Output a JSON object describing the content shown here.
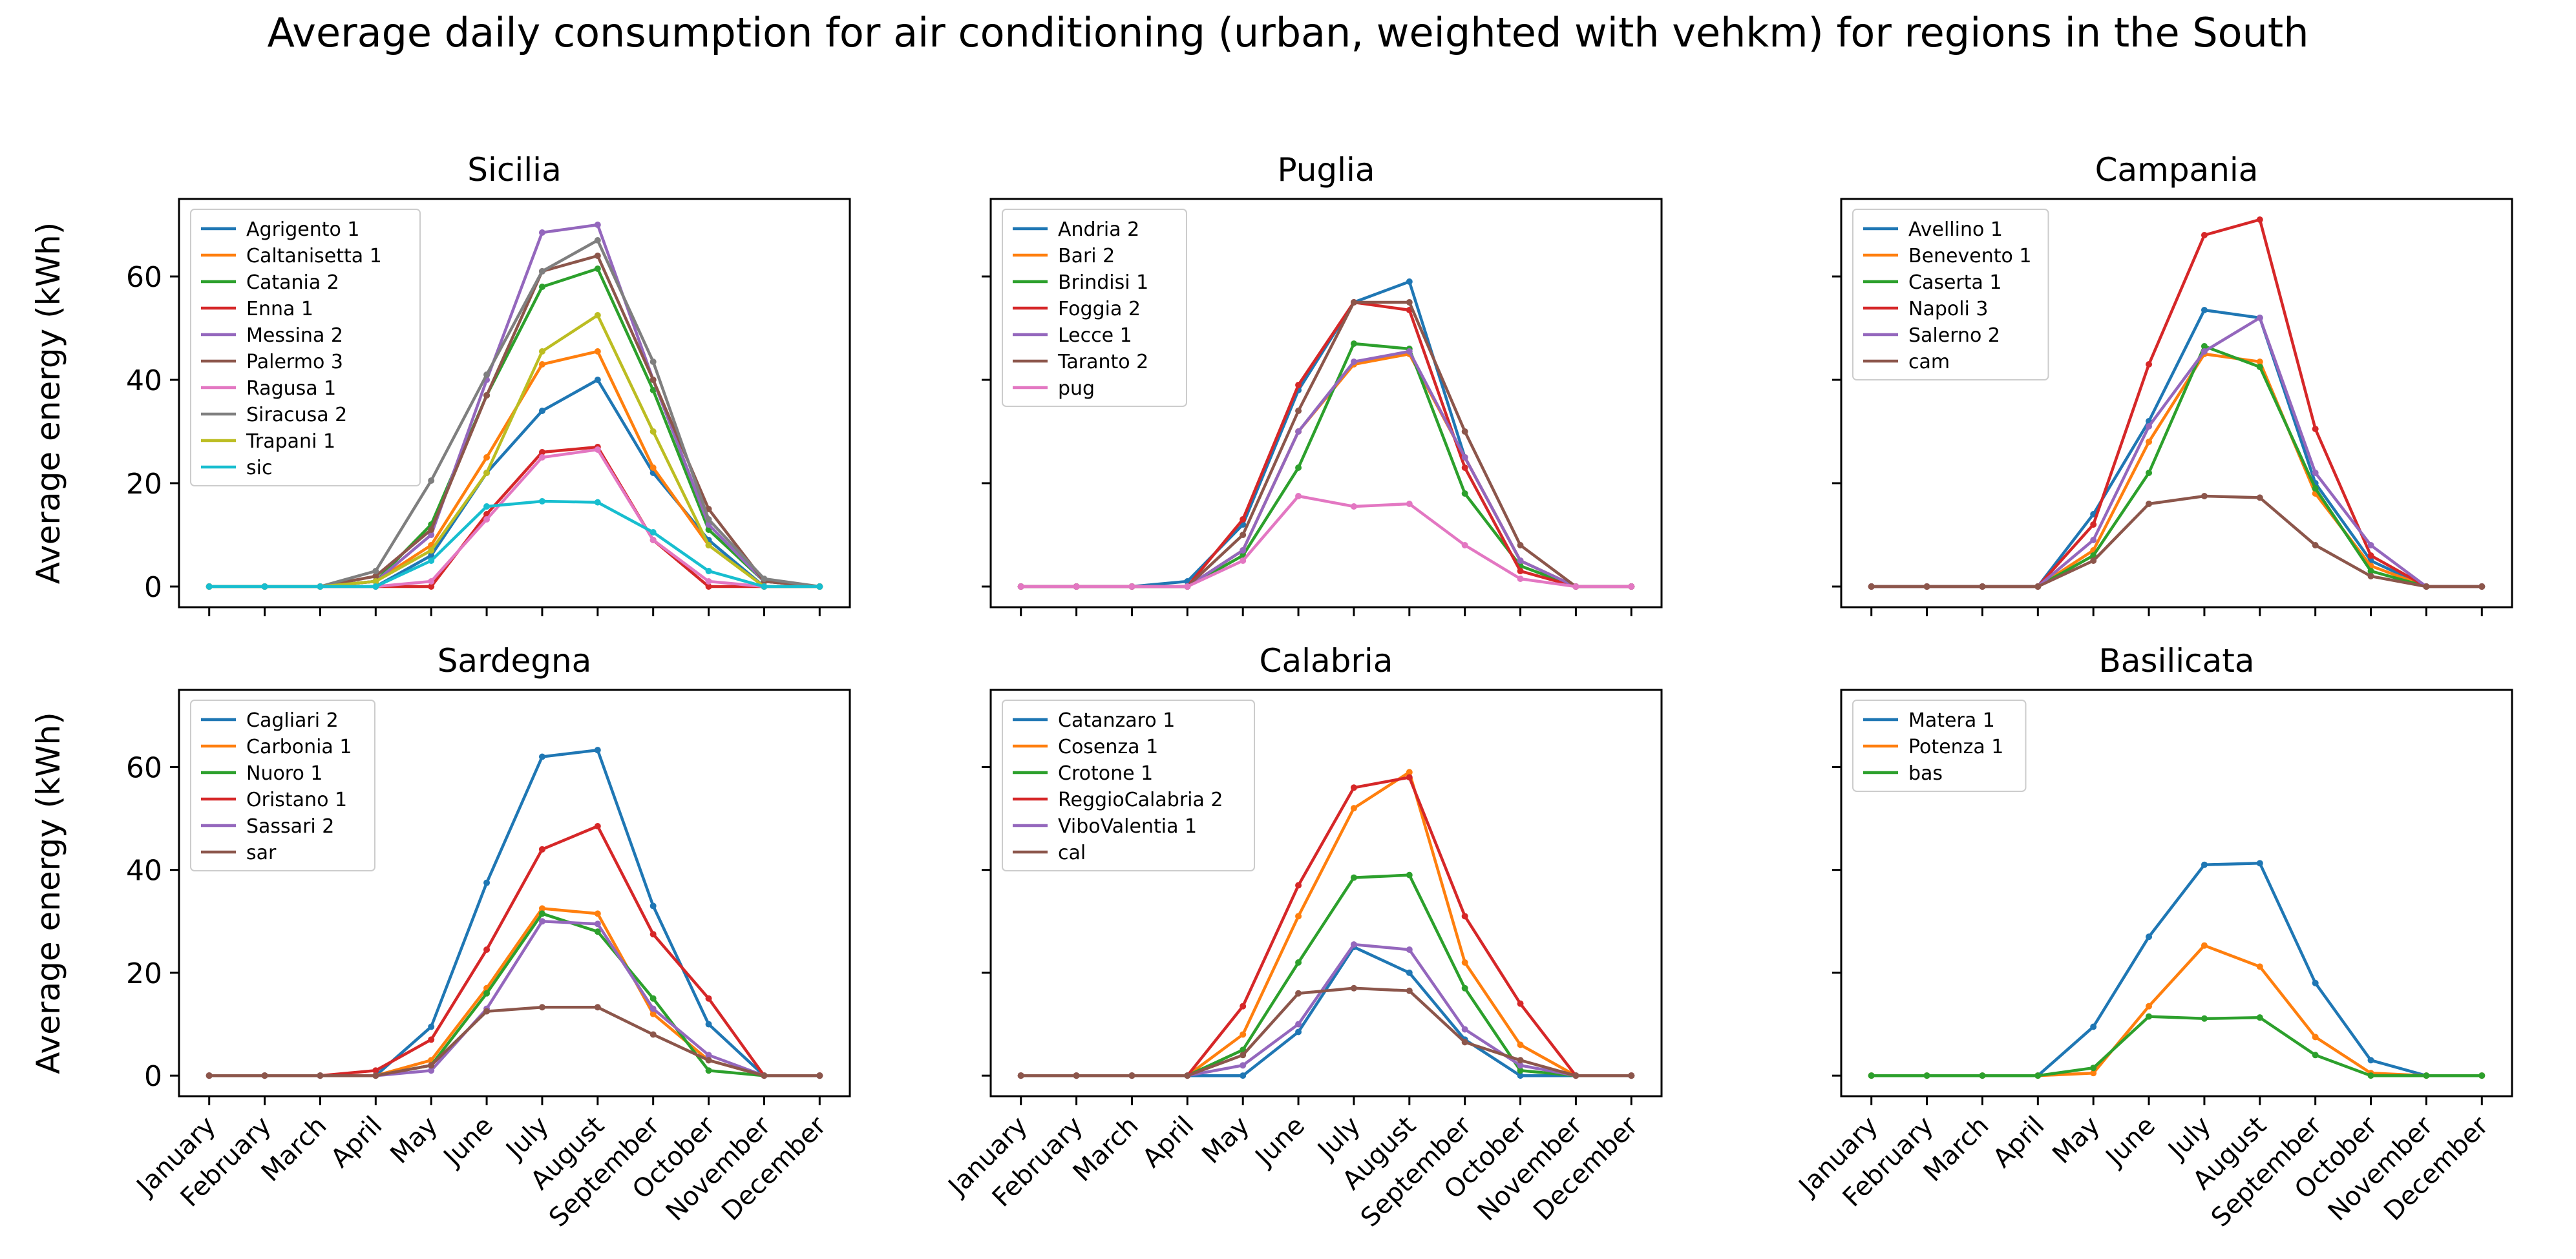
{
  "title": "Average daily consumption for air conditioning (urban, weighted with vehkm) for regions in the South",
  "months": [
    "January",
    "February",
    "March",
    "April",
    "May",
    "June",
    "July",
    "August",
    "September",
    "October",
    "November",
    "December"
  ],
  "ylabel": "Average energy (kWh)",
  "yticks": [
    0,
    20,
    40,
    60
  ],
  "colors": [
    "#1f77b4",
    "#ff7f0e",
    "#2ca02c",
    "#d62728",
    "#9467bd",
    "#8c564b",
    "#e377c2",
    "#7f7f7f",
    "#bcbd22",
    "#17becf"
  ],
  "chart_data": [
    {
      "type": "line",
      "title": "Sicilia",
      "ylim": [
        -4,
        75
      ],
      "legend_position": "top-left",
      "series": [
        {
          "name": "Agrigento 1",
          "color": "#1f77b4",
          "values": [
            0,
            0,
            0,
            0,
            6,
            22,
            34,
            40,
            22,
            9,
            0,
            0
          ]
        },
        {
          "name": "Caltanisetta 1",
          "color": "#ff7f0e",
          "values": [
            0,
            0,
            0,
            1,
            8,
            25,
            43,
            45.5,
            23,
            8,
            0,
            0
          ]
        },
        {
          "name": "Catania 2",
          "color": "#2ca02c",
          "values": [
            0,
            0,
            0,
            1,
            12,
            37,
            58,
            61.5,
            38,
            11,
            1,
            0
          ]
        },
        {
          "name": "Enna 1",
          "color": "#d62728",
          "values": [
            0,
            0,
            0,
            0,
            0,
            14,
            26,
            27,
            9,
            0,
            0,
            0
          ]
        },
        {
          "name": "Messina 2",
          "color": "#9467bd",
          "values": [
            0,
            0,
            0,
            1,
            10,
            40,
            68.5,
            70,
            40,
            12,
            1,
            0
          ]
        },
        {
          "name": "Palermo 3",
          "color": "#8c564b",
          "values": [
            0,
            0,
            0,
            2,
            11,
            37,
            61,
            64,
            40,
            15,
            1,
            0
          ]
        },
        {
          "name": "Ragusa 1",
          "color": "#e377c2",
          "values": [
            0,
            0,
            0,
            0,
            1,
            13,
            25,
            26.5,
            9,
            1,
            0,
            0
          ]
        },
        {
          "name": "Siracusa 2",
          "color": "#7f7f7f",
          "values": [
            0,
            0,
            0,
            3,
            20.5,
            41,
            61,
            67,
            43.5,
            13,
            1.5,
            0
          ]
        },
        {
          "name": "Trapani 1",
          "color": "#bcbd22",
          "values": [
            0,
            0,
            0,
            1,
            7,
            22,
            45.5,
            52.5,
            30,
            8,
            0,
            0
          ]
        },
        {
          "name": "sic",
          "color": "#17becf",
          "values": [
            0,
            0,
            0,
            0,
            5,
            15.5,
            16.5,
            16.3,
            10.5,
            3,
            0,
            0
          ]
        }
      ]
    },
    {
      "type": "line",
      "title": "Puglia",
      "ylim": [
        -4,
        75
      ],
      "legend_position": "top-left",
      "series": [
        {
          "name": "Andria 2",
          "color": "#1f77b4",
          "values": [
            0,
            0,
            0,
            1,
            12,
            38,
            55,
            59,
            25,
            5,
            0,
            0
          ]
        },
        {
          "name": "Bari 2",
          "color": "#ff7f0e",
          "values": [
            0,
            0,
            0,
            0,
            7,
            30,
            43,
            45,
            25,
            5,
            0,
            0
          ]
        },
        {
          "name": "Brindisi 1",
          "color": "#2ca02c",
          "values": [
            0,
            0,
            0,
            0,
            6,
            23,
            47,
            46,
            18,
            4,
            0,
            0
          ]
        },
        {
          "name": "Foggia 2",
          "color": "#d62728",
          "values": [
            0,
            0,
            0,
            0,
            13,
            39,
            55,
            53.5,
            23,
            3,
            0,
            0
          ]
        },
        {
          "name": "Lecce 1",
          "color": "#9467bd",
          "values": [
            0,
            0,
            0,
            0,
            7,
            30,
            43.5,
            45.5,
            25,
            5,
            0,
            0
          ]
        },
        {
          "name": "Taranto 2",
          "color": "#8c564b",
          "values": [
            0,
            0,
            0,
            0,
            10,
            34,
            55,
            55,
            30,
            8,
            0,
            0
          ]
        },
        {
          "name": "pug",
          "color": "#e377c2",
          "values": [
            0,
            0,
            0,
            0,
            5,
            17.5,
            15.5,
            16,
            8,
            1.5,
            0,
            0
          ]
        }
      ]
    },
    {
      "type": "line",
      "title": "Campania",
      "ylim": [
        -4,
        75
      ],
      "legend_position": "top-left",
      "series": [
        {
          "name": "Avellino 1",
          "color": "#1f77b4",
          "values": [
            0,
            0,
            0,
            0,
            14,
            32,
            53.5,
            52,
            20,
            5,
            0,
            0
          ]
        },
        {
          "name": "Benevento 1",
          "color": "#ff7f0e",
          "values": [
            0,
            0,
            0,
            0,
            7,
            28,
            45,
            43.5,
            18,
            4,
            0,
            0
          ]
        },
        {
          "name": "Caserta 1",
          "color": "#2ca02c",
          "values": [
            0,
            0,
            0,
            0,
            6,
            22,
            46.5,
            42.5,
            19,
            3,
            0,
            0
          ]
        },
        {
          "name": "Napoli 3",
          "color": "#d62728",
          "values": [
            0,
            0,
            0,
            0,
            12,
            43,
            68,
            71,
            30.5,
            6,
            0,
            0
          ]
        },
        {
          "name": "Salerno 2",
          "color": "#9467bd",
          "values": [
            0,
            0,
            0,
            0,
            9,
            31,
            45.5,
            52,
            22,
            8,
            0,
            0
          ]
        },
        {
          "name": "cam",
          "color": "#8c564b",
          "values": [
            0,
            0,
            0,
            0,
            5,
            16,
            17.5,
            17.2,
            8,
            2,
            0,
            0
          ]
        }
      ]
    },
    {
      "type": "line",
      "title": "Sardegna",
      "ylim": [
        -4,
        75
      ],
      "legend_position": "top-left",
      "series": [
        {
          "name": "Cagliari 2",
          "color": "#1f77b4",
          "values": [
            0,
            0,
            0,
            0,
            9.5,
            37.5,
            62,
            63.3,
            33,
            10,
            0,
            0
          ]
        },
        {
          "name": "Carbonia 1",
          "color": "#ff7f0e",
          "values": [
            0,
            0,
            0,
            0,
            3,
            17,
            32.5,
            31.5,
            12,
            3,
            0,
            0
          ]
        },
        {
          "name": "Nuoro 1",
          "color": "#2ca02c",
          "values": [
            0,
            0,
            0,
            0,
            2,
            16,
            31.5,
            28,
            15,
            1,
            0,
            0
          ]
        },
        {
          "name": "Oristano 1",
          "color": "#d62728",
          "values": [
            0,
            0,
            0,
            1,
            7,
            24.5,
            44,
            48.5,
            27.5,
            15,
            0,
            0
          ]
        },
        {
          "name": "Sassari 2",
          "color": "#9467bd",
          "values": [
            0,
            0,
            0,
            0,
            1,
            13,
            30,
            29.5,
            13,
            4,
            0,
            0
          ]
        },
        {
          "name": "sar",
          "color": "#8c564b",
          "values": [
            0,
            0,
            0,
            0,
            2,
            12.5,
            13.3,
            13.3,
            8,
            3,
            0,
            0
          ]
        }
      ]
    },
    {
      "type": "line",
      "title": "Calabria",
      "ylim": [
        -4,
        75
      ],
      "legend_position": "top-left",
      "series": [
        {
          "name": "Catanzaro 1",
          "color": "#1f77b4",
          "values": [
            0,
            0,
            0,
            0,
            0,
            8.5,
            25,
            20,
            7,
            0,
            0,
            0
          ]
        },
        {
          "name": "Cosenza 1",
          "color": "#ff7f0e",
          "values": [
            0,
            0,
            0,
            0,
            8,
            31,
            52,
            59,
            22,
            6,
            0,
            0
          ]
        },
        {
          "name": "Crotone 1",
          "color": "#2ca02c",
          "values": [
            0,
            0,
            0,
            0,
            5,
            22,
            38.5,
            39,
            17,
            1,
            0,
            0
          ]
        },
        {
          "name": "ReggioCalabria 2",
          "color": "#d62728",
          "values": [
            0,
            0,
            0,
            0,
            13.5,
            37,
            56,
            58,
            31,
            14,
            0,
            0
          ]
        },
        {
          "name": "ViboValentia 1",
          "color": "#9467bd",
          "values": [
            0,
            0,
            0,
            0,
            2,
            10,
            25.5,
            24.5,
            9,
            2,
            0,
            0
          ]
        },
        {
          "name": "cal",
          "color": "#8c564b",
          "values": [
            0,
            0,
            0,
            0,
            4,
            16,
            17,
            16.5,
            6.5,
            3,
            0,
            0
          ]
        }
      ]
    },
    {
      "type": "line",
      "title": "Basilicata",
      "ylim": [
        -4,
        75
      ],
      "legend_position": "top-left",
      "series": [
        {
          "name": "Matera 1",
          "color": "#1f77b4",
          "values": [
            0,
            0,
            0,
            0,
            9.5,
            27,
            41,
            41.3,
            18,
            3,
            0,
            0
          ]
        },
        {
          "name": "Potenza 1",
          "color": "#ff7f0e",
          "values": [
            0,
            0,
            0,
            0,
            0.5,
            13.5,
            25.3,
            21.2,
            7.5,
            0.5,
            0,
            0
          ]
        },
        {
          "name": "bas",
          "color": "#2ca02c",
          "values": [
            0,
            0,
            0,
            0,
            1.5,
            11.5,
            11.1,
            11.3,
            4,
            0,
            0,
            0
          ]
        }
      ]
    }
  ]
}
